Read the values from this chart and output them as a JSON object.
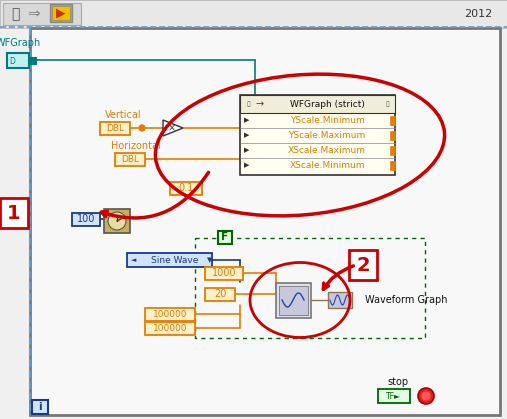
{
  "fig_w": 5.07,
  "fig_h": 4.19,
  "dpi": 100,
  "orange": "#e87c00",
  "blue_dark": "#1a3a8a",
  "teal": "#007b7b",
  "green_dark": "#006600",
  "red": "#cc0000",
  "black": "#111111",
  "white": "#ffffff",
  "gray_dark": "#555555",
  "gray_med": "#888888",
  "gray_light": "#cccccc",
  "tan": "#c8b060",
  "orange_light": "#fff0cc",
  "blue_light": "#d0e4ff",
  "teal_light": "#c0f0f0",
  "green_light": "#e0ffe0",
  "year": "2012",
  "wfgraph_lbl": "WFGraph",
  "wfgstrict_lbl": "WFGraph (strict)",
  "yscale_min": "YScale.Minimum",
  "yscale_max": "YScale.Maximum",
  "xscale_max": "XScale.Maximum",
  "xscale_min": "XScale.Minimum",
  "vertical_lbl": "Vertical",
  "horizontal_lbl": "Horizontal",
  "dbl_lbl": "DBL",
  "val_01": "0.1",
  "val_100": "100",
  "val_1000": "1000",
  "val_20": "20",
  "val_100k": "100000",
  "sine_lbl": "Sine Wave",
  "wfm_graph_lbl": "Waveform Graph",
  "stop_lbl": "stop",
  "F_lbl": "F",
  "i_lbl": "i",
  "lbl1": "1",
  "lbl2": "2"
}
